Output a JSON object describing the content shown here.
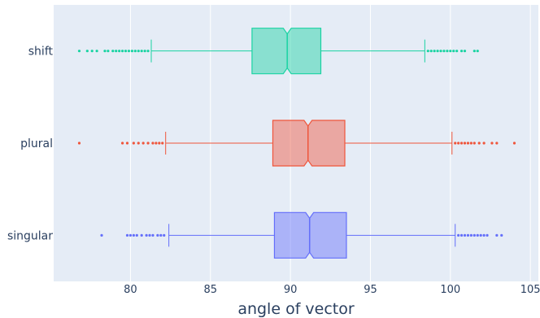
{
  "chart_data": {
    "type": "box",
    "orientation": "horizontal",
    "notched": true,
    "title": "",
    "xlabel": "angle of vector",
    "ylabel": "",
    "xlim": [
      75.2,
      105.5
    ],
    "xticks": [
      80,
      85,
      90,
      95,
      100,
      105
    ],
    "grid": true,
    "background": "#e5ecf6",
    "legend": "none",
    "series": [
      {
        "name": "shift",
        "color": "#19d3a2",
        "q1": 87.6,
        "median": 89.8,
        "q3": 91.9,
        "whisker_low": 81.3,
        "whisker_high": 98.4,
        "notch_low": 89.55,
        "notch_high": 90.05,
        "outliers": [
          76.8,
          77.3,
          77.6,
          77.9,
          78.4,
          78.6,
          78.9,
          79.1,
          79.3,
          79.5,
          79.7,
          79.9,
          80.1,
          80.3,
          80.5,
          80.7,
          80.9,
          81.1,
          98.6,
          98.8,
          99.0,
          99.2,
          99.4,
          99.6,
          99.8,
          100.0,
          100.2,
          100.4,
          100.7,
          100.9,
          101.5,
          101.7
        ]
      },
      {
        "name": "plural",
        "color": "#ef553b",
        "q1": 88.9,
        "median": 91.1,
        "q3": 93.4,
        "whisker_low": 82.2,
        "whisker_high": 100.1,
        "notch_low": 90.85,
        "notch_high": 91.35,
        "outliers": [
          76.8,
          79.5,
          79.8,
          80.2,
          80.5,
          80.8,
          81.1,
          81.4,
          81.6,
          81.8,
          82.0,
          100.3,
          100.5,
          100.7,
          100.9,
          101.1,
          101.3,
          101.5,
          101.8,
          102.1,
          102.6,
          102.9,
          104.0
        ]
      },
      {
        "name": "singular",
        "color": "#636efa",
        "q1": 89.0,
        "median": 91.2,
        "q3": 93.5,
        "whisker_low": 82.4,
        "whisker_high": 100.3,
        "notch_low": 90.95,
        "notch_high": 91.45,
        "outliers": [
          78.2,
          79.8,
          80.0,
          80.2,
          80.4,
          80.7,
          81.0,
          81.2,
          81.4,
          81.7,
          81.9,
          82.1,
          100.5,
          100.7,
          100.9,
          101.1,
          101.3,
          101.5,
          101.7,
          101.9,
          102.1,
          102.3,
          102.9,
          103.2
        ]
      }
    ]
  }
}
